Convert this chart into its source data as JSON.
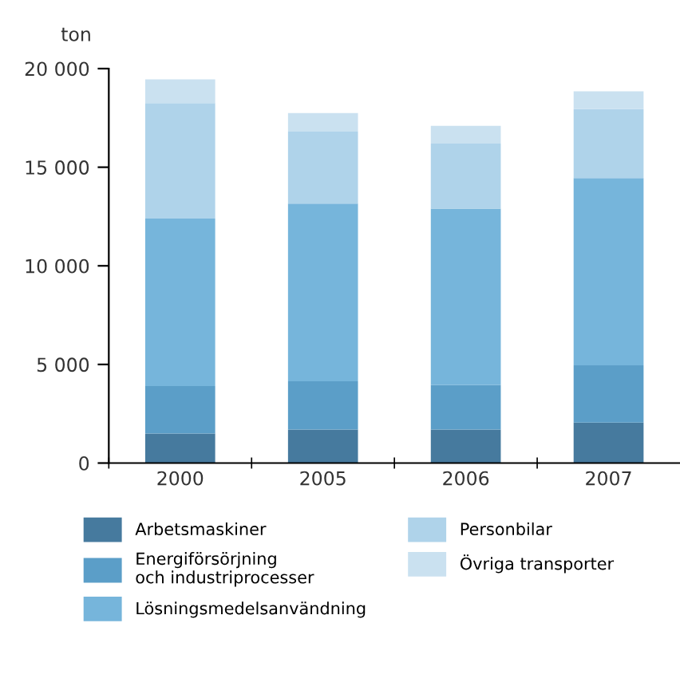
{
  "chart_data": {
    "type": "bar",
    "stacked": true,
    "ylabel": "ton",
    "categories": [
      "2000",
      "2005",
      "2006",
      "2007"
    ],
    "series": [
      {
        "name": "Arbetsmaskiner",
        "color": "#467a9e",
        "values": [
          1500,
          1700,
          1700,
          2050
        ]
      },
      {
        "name": "Energiförsörjning\noch industriprocesser",
        "color": "#5b9ec8",
        "values": [
          2400,
          2450,
          2250,
          2900
        ]
      },
      {
        "name": "Lösningsmedelsanvändning",
        "color": "#76b5db",
        "values": [
          8500,
          9000,
          8950,
          9500
        ]
      },
      {
        "name": "Personbilar",
        "color": "#afd3ea",
        "values": [
          5850,
          3650,
          3300,
          3500
        ]
      },
      {
        "name": "Övriga transporter",
        "color": "#cae1f0",
        "values": [
          1200,
          950,
          900,
          900
        ]
      }
    ],
    "ylim": [
      0,
      20000
    ],
    "yticks": [
      0,
      {
        "value": 5000,
        "label": "5 000"
      },
      {
        "value": 10000,
        "label": "10 000"
      },
      {
        "value": 15000,
        "label": "15 000"
      },
      {
        "value": 20000,
        "label": "20 000"
      }
    ],
    "legend": "bottom"
  }
}
